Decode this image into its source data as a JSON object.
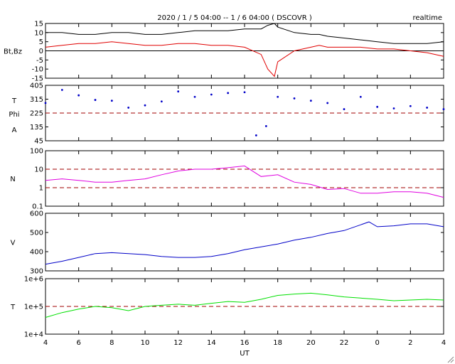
{
  "header": {
    "title": "2020 / 1 / 5  04:00 -- 1 / 6  04:00 ( DSCOVR )",
    "mode": "realtime"
  },
  "x_axis": {
    "label": "UT",
    "ticks": [
      "4",
      "6",
      "8",
      "10",
      "12",
      "14",
      "16",
      "18",
      "20",
      "22",
      "0",
      "2",
      "4"
    ]
  },
  "colors": {
    "bt": "#000000",
    "bz": "#e00000",
    "phi": "#0000c8",
    "density": "#e000e0",
    "speed": "#0000c8",
    "temperature": "#00e000",
    "reference": "#a00000"
  },
  "chart_data": [
    {
      "type": "line",
      "name": "magnetic-field",
      "ylabel": "Bt,Bz",
      "ylim": [
        -15,
        15
      ],
      "yticks": [
        "15",
        "10",
        "5",
        "0",
        "-5",
        "-10",
        "-15"
      ],
      "x_hours": [
        0,
        1,
        2,
        3,
        4,
        5,
        6,
        7,
        8,
        9,
        10,
        11,
        12,
        13,
        13.4,
        13.8,
        14,
        15,
        16,
        16.5,
        17,
        18,
        19,
        20,
        21,
        22,
        23,
        24
      ],
      "series": [
        {
          "name": "Bt",
          "values": [
            10,
            10,
            9,
            9,
            10,
            10,
            9,
            9,
            10,
            11,
            11,
            11,
            12,
            12,
            14,
            15,
            13,
            10,
            9,
            9,
            8,
            7,
            6,
            5,
            4,
            4,
            4,
            5
          ]
        },
        {
          "name": "Bz",
          "values": [
            2,
            3,
            4,
            4,
            5,
            4,
            3,
            3,
            4,
            4,
            3,
            3,
            2,
            -2,
            -10,
            -14,
            -6,
            0,
            2,
            3,
            2,
            2,
            2,
            1,
            1,
            0,
            -1,
            -3
          ]
        }
      ]
    },
    {
      "type": "scatter",
      "name": "phi-angle",
      "ylabel": "T Phi A",
      "ylim": [
        45,
        405
      ],
      "yticks": [
        "405",
        "315",
        "225",
        "135",
        "45"
      ],
      "reference": 225,
      "x_hours": [
        0,
        1,
        2,
        3,
        4,
        5,
        6,
        7,
        8,
        9,
        10,
        11,
        12,
        12.7,
        13.3,
        14,
        15,
        16,
        17,
        18,
        19,
        20,
        21,
        22,
        23,
        24
      ],
      "values": [
        290,
        375,
        340,
        310,
        305,
        260,
        275,
        300,
        365,
        330,
        345,
        355,
        360,
        80,
        140,
        330,
        320,
        305,
        290,
        250,
        330,
        265,
        255,
        270,
        260,
        250
      ]
    },
    {
      "type": "line",
      "name": "density",
      "ylabel": "N",
      "scale": "log",
      "ylim": [
        0.1,
        100
      ],
      "yticks": [
        "100",
        "10",
        "1",
        "0.1"
      ],
      "reference": [
        10,
        1
      ],
      "x_hours": [
        0,
        1,
        2,
        3,
        4,
        5,
        6,
        7,
        8,
        9,
        10,
        11,
        12,
        13,
        14,
        15,
        16,
        17,
        18,
        19,
        20,
        21,
        22,
        23,
        24
      ],
      "values": [
        2.5,
        3,
        2.5,
        2,
        2,
        2.5,
        3,
        5,
        8,
        10,
        10,
        12,
        15,
        4,
        5,
        2,
        1.5,
        0.8,
        0.9,
        0.5,
        0.5,
        0.6,
        0.6,
        0.5,
        0.3
      ]
    },
    {
      "type": "line",
      "name": "speed",
      "ylabel": "V",
      "ylim": [
        300,
        600
      ],
      "yticks": [
        "600",
        "500",
        "400",
        "300"
      ],
      "x_hours": [
        0,
        1,
        2,
        3,
        4,
        5,
        6,
        7,
        8,
        9,
        10,
        11,
        12,
        13,
        14,
        15,
        16,
        17,
        18,
        19,
        19.5,
        20,
        21,
        22,
        23,
        24
      ],
      "values": [
        335,
        350,
        370,
        390,
        395,
        390,
        385,
        375,
        370,
        370,
        375,
        390,
        410,
        425,
        440,
        460,
        475,
        495,
        510,
        540,
        555,
        530,
        535,
        545,
        545,
        530
      ]
    },
    {
      "type": "line",
      "name": "temperature",
      "ylabel": "T",
      "scale": "log",
      "ylim": [
        10000,
        1000000
      ],
      "yticks": [
        "1e+6",
        "1e+5",
        "1e+4"
      ],
      "reference": [
        100000
      ],
      "x_hours": [
        0,
        1,
        2,
        3,
        4,
        5,
        6,
        7,
        8,
        9,
        10,
        11,
        12,
        13,
        14,
        15,
        16,
        17,
        18,
        19,
        20,
        21,
        22,
        23,
        24
      ],
      "values": [
        40000,
        60000,
        80000,
        100000,
        90000,
        70000,
        100000,
        110000,
        120000,
        110000,
        130000,
        150000,
        140000,
        180000,
        250000,
        280000,
        300000,
        260000,
        220000,
        200000,
        180000,
        160000,
        170000,
        180000,
        170000
      ]
    }
  ]
}
